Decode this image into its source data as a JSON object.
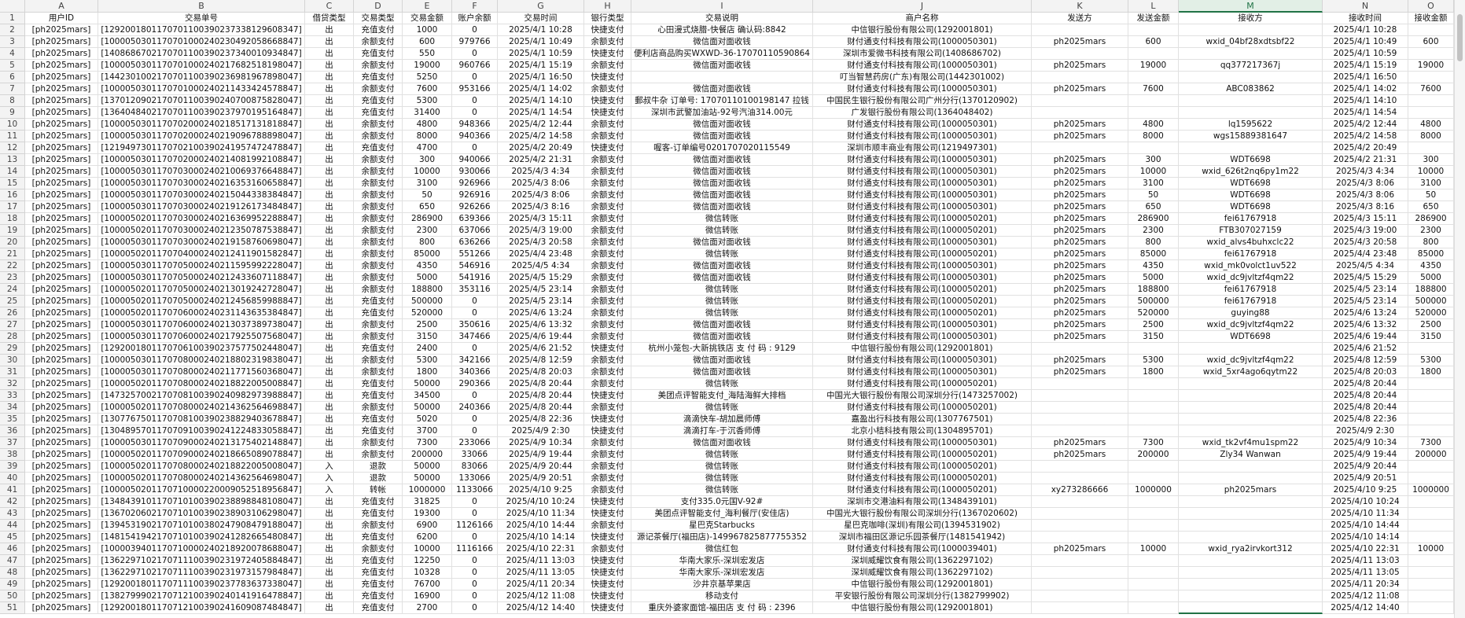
{
  "columns": [
    "A",
    "B",
    "C",
    "D",
    "E",
    "F",
    "G",
    "H",
    "I",
    "J",
    "K",
    "L",
    "M",
    "N",
    "O"
  ],
  "row_numbers": [
    1,
    2,
    3,
    4,
    5,
    6,
    7,
    8,
    9,
    10,
    11,
    12,
    13,
    14,
    15,
    16,
    17,
    18,
    19,
    20,
    21,
    22,
    23,
    24,
    25,
    26,
    27,
    28,
    29,
    30,
    31,
    32,
    33,
    34,
    35,
    36,
    37,
    38,
    39,
    40,
    41,
    42,
    43,
    44,
    45,
    46,
    47,
    48,
    49,
    50,
    51
  ],
  "table": {
    "header": [
      "用户ID",
      "交易单号",
      "借贷类型",
      "交易类型",
      "交易金额",
      "账户余额",
      "交易时间",
      "银行类型",
      "交易说明",
      "商户名称",
      "发送方",
      "发送金额",
      "接收方",
      "接收时间",
      "接收金额"
    ],
    "rows": [
      [
        "[ph2025mars]",
        "[1292001801170701100390237338129608347]",
        "出",
        "充值支付",
        1000,
        0,
        "2025/4/1 10:28",
        "快捷支付",
        "心田漫式烧腊-快餐店 确认码:8842",
        "中信银行股份有限公司(1292001801)",
        null,
        null,
        null,
        "2025/4/1 10:28",
        null
      ],
      [
        "[ph2025mars]",
        "[1000050301170701000240230492058668847]",
        "出",
        "余额支付",
        600,
        979766,
        "2025/4/1 10:49",
        "余额支付",
        "微信面对面收钱",
        "财付通支付科技有限公司(1000050301)",
        "ph2025mars",
        600,
        "wxid_04bf28xdtsbf22",
        "2025/4/1 10:49",
        600
      ],
      [
        "[ph2025mars]",
        "[1408686702170701100390237340010934847]",
        "出",
        "充值支付",
        550,
        0,
        "2025/4/1 10:59",
        "快捷支付",
        "便利店商品购买WXWD-36-17070110590864",
        "深圳市爱微书科技有限公司(1408686702)",
        null,
        null,
        null,
        "2025/4/1 10:59",
        null
      ],
      [
        "[ph2025mars]",
        "[1000050301170701000240217682518198047]",
        "出",
        "余额支付",
        19000,
        960766,
        "2025/4/1 15:19",
        "余额支付",
        "微信面对面收钱",
        "财付通支付科技有限公司(1000050301)",
        "ph2025mars",
        19000,
        "qq377217367j",
        "2025/4/1 15:19",
        19000
      ],
      [
        "[ph2025mars]",
        "[1442301002170701100390236981967898047]",
        "出",
        "充值支付",
        5250,
        0,
        "2025/4/1 16:50",
        "快捷支付",
        null,
        "叮当智慧药房(广东)有限公司(1442301002)",
        null,
        null,
        null,
        "2025/4/1 16:50",
        null
      ],
      [
        "[ph2025mars]",
        "[1000050301170701000240211433424578847]",
        "出",
        "余额支付",
        7600,
        953166,
        "2025/4/1 14:02",
        "余额支付",
        "微信面对面收钱",
        "财付通支付科技有限公司(1000050301)",
        "ph2025mars",
        7600,
        "ABC083862",
        "2025/4/1 14:02",
        7600
      ],
      [
        "[ph2025mars]",
        "[1370120902170701100390240700875828047]",
        "出",
        "充值支付",
        5300,
        0,
        "2025/4/1 14:10",
        "快捷支付",
        "郵叔牛杂 订单号: 17070110100198147 拉钱",
        "中国民生银行股份有限公司广州分行(1370120902)",
        null,
        null,
        null,
        "2025/4/1 14:10",
        null
      ],
      [
        "[ph2025mars]",
        "[1364048402170701100390237970195164847]",
        "出",
        "充值支付",
        31400,
        0,
        "2025/4/1 14:54",
        "快捷支付",
        "深圳市武警加油站-92号汽油314.00元",
        "广发银行股份有限公司(1364048402)",
        null,
        null,
        null,
        "2025/4/1 14:54",
        null
      ],
      [
        "[ph2025mars]",
        "[1000050301170702000240218517131818847]",
        "出",
        "余额支付",
        4800,
        948366,
        "2025/4/2 12:44",
        "余额支付",
        "微信面对面收钱",
        "财付通支付科技有限公司(1000050301)",
        "ph2025mars",
        4800,
        "lq1595622",
        "2025/4/2 12:44",
        4800
      ],
      [
        "[ph2025mars]",
        "[1000050301170702000240219096788898047]",
        "出",
        "余额支付",
        8000,
        940366,
        "2025/4/2 14:58",
        "余额支付",
        "微信面对面收钱",
        "财付通支付科技有限公司(1000050301)",
        "ph2025mars",
        8000,
        "wgs15889381647",
        "2025/4/2 14:58",
        8000
      ],
      [
        "[ph2025mars]",
        "[1219497301170702100390241957472478847]",
        "出",
        "充值支付",
        4700,
        0,
        "2025/4/2 20:49",
        "快捷支付",
        "喔客-订单编号0201707020115549",
        "深圳市顺丰商业有限公司(1219497301)",
        null,
        null,
        null,
        "2025/4/2 20:49",
        null
      ],
      [
        "[ph2025mars]",
        "[1000050301170702000240214081992108847]",
        "出",
        "余额支付",
        300,
        940066,
        "2025/4/2 21:31",
        "余额支付",
        "微信面对面收钱",
        "财付通支付科技有限公司(1000050301)",
        "ph2025mars",
        300,
        "WDT6698",
        "2025/4/2 21:31",
        300
      ],
      [
        "[ph2025mars]",
        "[1000050301170703000240210069376648847]",
        "出",
        "余额支付",
        10000,
        930066,
        "2025/4/3 4:34",
        "余额支付",
        "微信面对面收钱",
        "财付通支付科技有限公司(1000050301)",
        "ph2025mars",
        10000,
        "wxid_626t2nq6py1m22",
        "2025/4/3 4:34",
        10000
      ],
      [
        "[ph2025mars]",
        "[1000050301170703000240216353160658847]",
        "出",
        "余额支付",
        3100,
        926966,
        "2025/4/3 8:06",
        "余额支付",
        "微信面对面收钱",
        "财付通支付科技有限公司(1000050301)",
        "ph2025mars",
        3100,
        "WDT6698",
        "2025/4/3 8:06",
        3100
      ],
      [
        "[ph2025mars]",
        "[1000050301170703000240215044338384847]",
        "出",
        "余额支付",
        50,
        926916,
        "2025/4/3 8:06",
        "余额支付",
        "微信面对面收钱",
        "财付通支付科技有限公司(1000050301)",
        "ph2025mars",
        50,
        "WDT6698",
        "2025/4/3 8:06",
        50
      ],
      [
        "[ph2025mars]",
        "[1000050301170703000240219126173484847]",
        "出",
        "余额支付",
        650,
        926266,
        "2025/4/3 8:16",
        "余额支付",
        "微信面对面收钱",
        "财付通支付科技有限公司(1000050301)",
        "ph2025mars",
        650,
        "WDT6698",
        "2025/4/3 8:16",
        650
      ],
      [
        "[ph2025mars]",
        "[1000050201170703000240216369952288847]",
        "出",
        "余额支付",
        286900,
        639366,
        "2025/4/3 15:11",
        "余额支付",
        "微信转账",
        "财付通支付科技有限公司(1000050201)",
        "ph2025mars",
        286900,
        "fei61767918",
        "2025/4/3 15:11",
        286900
      ],
      [
        "[ph2025mars]",
        "[1000050201170703000240212350787538847]",
        "出",
        "余额支付",
        2300,
        637066,
        "2025/4/3 19:00",
        "余额支付",
        "微信转账",
        "财付通支付科技有限公司(1000050201)",
        "ph2025mars",
        2300,
        "FTB307027159",
        "2025/4/3 19:00",
        2300
      ],
      [
        "[ph2025mars]",
        "[1000050301170703000240219158760698047]",
        "出",
        "余额支付",
        800,
        636266,
        "2025/4/3 20:58",
        "余额支付",
        "微信面对面收钱",
        "财付通支付科技有限公司(1000050301)",
        "ph2025mars",
        800,
        "wxid_alvs4buhxclc22",
        "2025/4/3 20:58",
        800
      ],
      [
        "[ph2025mars]",
        "[1000050201170704000240212411901582847]",
        "出",
        "余额支付",
        85000,
        551266,
        "2025/4/4 23:48",
        "余额支付",
        "微信转账",
        "财付通支付科技有限公司(1000050201)",
        "ph2025mars",
        85000,
        "fei61767918",
        "2025/4/4 23:48",
        85000
      ],
      [
        "[ph2025mars]",
        "[1000050301170705000240211595992228047]",
        "出",
        "余额支付",
        4350,
        546916,
        "2025/4/5 4:34",
        "余额支付",
        "微信面对面收钱",
        "财付通支付科技有限公司(1000050301)",
        "ph2025mars",
        4350,
        "wxid_mk0volct1uv522",
        "2025/4/5 4:34",
        4350
      ],
      [
        "[ph2025mars]",
        "[1000050301170705000240212433607118847]",
        "出",
        "余额支付",
        5000,
        541916,
        "2025/4/5 15:29",
        "余额支付",
        "微信面对面收钱",
        "财付通支付科技有限公司(1000050301)",
        "ph2025mars",
        5000,
        "wxid_dc9jvltzf4qm22",
        "2025/4/5 15:29",
        5000
      ],
      [
        "[ph2025mars]",
        "[1000050201170705000240213019242728047]",
        "出",
        "余额支付",
        188800,
        353116,
        "2025/4/5 23:14",
        "余额支付",
        "微信转账",
        "财付通支付科技有限公司(1000050201)",
        "ph2025mars",
        188800,
        "fei61767918",
        "2025/4/5 23:14",
        188800
      ],
      [
        "[ph2025mars]",
        "[1000050201170705000240212456859988847]",
        "出",
        "充值支付",
        500000,
        0,
        "2025/4/5 23:14",
        "余额支付",
        "微信转账",
        "财付通支付科技有限公司(1000050201)",
        "ph2025mars",
        500000,
        "fei61767918",
        "2025/4/5 23:14",
        500000
      ],
      [
        "[ph2025mars]",
        "[1000050201170706000240231143635384847]",
        "出",
        "充值支付",
        520000,
        0,
        "2025/4/6 13:24",
        "余额支付",
        "微信转账",
        "财付通支付科技有限公司(1000050201)",
        "ph2025mars",
        520000,
        "guying88",
        "2025/4/6 13:24",
        520000
      ],
      [
        "[ph2025mars]",
        "[1000050301170706000240213037389738047]",
        "出",
        "余额支付",
        2500,
        350616,
        "2025/4/6 13:32",
        "余额支付",
        "微信面对面收钱",
        "财付通支付科技有限公司(1000050301)",
        "ph2025mars",
        2500,
        "wxid_dc9jvltzf4qm22",
        "2025/4/6 13:32",
        2500
      ],
      [
        "[ph2025mars]",
        "[1000050301170706000240217925507568047]",
        "出",
        "余额支付",
        3150,
        347466,
        "2025/4/6 19:44",
        "余额支付",
        "微信面对面收钱",
        "财付通支付科技有限公司(1000050301)",
        "ph2025mars",
        3150,
        "WDT6698",
        "2025/4/6 19:44",
        3150
      ],
      [
        "[ph2025mars]",
        "[1292001801170706100390237577502448047]",
        "出",
        "充值支付",
        2400,
        0,
        "2025/4/6 21:52",
        "快捷支付",
        "杭州小笼包-大新挑铁店 支 付 码 : 9129",
        "中信银行股份有限公司(1292001801)",
        null,
        null,
        null,
        "2025/4/6 21:52",
        null
      ],
      [
        "[ph2025mars]",
        "[1000050301170708000240218802319838047]",
        "出",
        "余额支付",
        5300,
        342166,
        "2025/4/8 12:59",
        "余额支付",
        "微信面对面收钱",
        "财付通支付科技有限公司(1000050301)",
        "ph2025mars",
        5300,
        "wxid_dc9jvltzf4qm22",
        "2025/4/8 12:59",
        5300
      ],
      [
        "[ph2025mars]",
        "[1000050301170708000240211771560368047]",
        "出",
        "余额支付",
        1800,
        340366,
        "2025/4/8 20:03",
        "余额支付",
        "微信面对面收钱",
        "财付通支付科技有限公司(1000050301)",
        "ph2025mars",
        1800,
        "wxid_5xr4ago6qytm22",
        "2025/4/8 20:03",
        1800
      ],
      [
        "[ph2025mars]",
        "[1000050201170708000240218822005008847]",
        "出",
        "充值支付",
        50000,
        290366,
        "2025/4/8 20:44",
        "余额支付",
        "微信转账",
        "财付通支付科技有限公司(1000050201)",
        null,
        null,
        null,
        "2025/4/8 20:44",
        null
      ],
      [
        "[ph2025mars]",
        "[1473257002170708100390240982973988847]",
        "出",
        "充值支付",
        34500,
        0,
        "2025/4/8 20:44",
        "快捷支付",
        "美团点评智能支付_海陆海鲜大排档",
        "中国光大银行股份有限公司深圳分行(1473257002)",
        null,
        null,
        null,
        "2025/4/8 20:44",
        null
      ],
      [
        "[ph2025mars]",
        "[1000050201170708000240214362564698847]",
        "出",
        "余额支付",
        50000,
        240366,
        "2025/4/8 20:44",
        "余额支付",
        "微信转账",
        "财付通支付科技有限公司(1000050201)",
        null,
        null,
        null,
        "2025/4/8 20:44",
        null
      ],
      [
        "[ph2025mars]",
        "[1307767501170708100390238829403678847]",
        "出",
        "充值支付",
        5020,
        0,
        "2025/4/8 22:36",
        "快捷支付",
        "滴滴快车-胡加晨师傅",
        "嘉盈出行科技有限公司(1307767501)",
        null,
        null,
        null,
        "2025/4/8 22:36",
        null
      ],
      [
        "[ph2025mars]",
        "[1304895701170709100390241224833058847]",
        "出",
        "充值支付",
        3700,
        0,
        "2025/4/9 2:30",
        "快捷支付",
        "滴滴打车-于沉香师傅",
        "北京小桔科技有限公司(1304895701)",
        null,
        null,
        null,
        "2025/4/9 2:30",
        null
      ],
      [
        "[ph2025mars]",
        "[1000050301170709000240213175402148847]",
        "出",
        "余额支付",
        7300,
        233066,
        "2025/4/9 10:34",
        "余额支付",
        "微信面对面收钱",
        "财付通支付科技有限公司(1000050301)",
        "ph2025mars",
        7300,
        "wxid_tk2vf4mu1spm22",
        "2025/4/9 10:34",
        7300
      ],
      [
        "[ph2025mars]",
        "[1000050201170709000240218665089078847]",
        "出",
        "余额支付",
        200000,
        33066,
        "2025/4/9 19:44",
        "余额支付",
        "微信转账",
        "财付通支付科技有限公司(1000050201)",
        "ph2025mars",
        200000,
        "Zly34 Wanwan",
        "2025/4/9 19:44",
        200000
      ],
      [
        "[ph2025mars]",
        "[1000050201170708000240218822005008047]",
        "入",
        "退款",
        50000,
        83066,
        "2025/4/9 20:44",
        "余额支付",
        "微信转账",
        "财付通支付科技有限公司(1000050201)",
        null,
        null,
        null,
        "2025/4/9 20:44",
        null
      ],
      [
        "[ph2025mars]",
        "[1000050201170708000240214362564698047]",
        "入",
        "退款",
        50000,
        133066,
        "2025/4/9 20:51",
        "余额支付",
        "微信转账",
        "财付通支付科技有限公司(1000050201)",
        null,
        null,
        null,
        "2025/4/9 20:51",
        null
      ],
      [
        "[ph2025mars]",
        "[1000050201170710000220009052518956847]",
        "入",
        "转帐",
        1000000,
        1133066,
        "2025/4/10 9:25",
        "余额支付",
        "微信转账",
        "财付通支付科技有限公司(1000050201)",
        "xy273286666",
        1000000,
        "ph2025mars",
        "2025/4/10 9:25",
        1000000
      ],
      [
        "[ph2025mars]",
        "[1348439101170710100390238898848108047]",
        "出",
        "充值支付",
        31825,
        0,
        "2025/4/10 10:24",
        "快捷支付",
        "支付335.0元国V-92#",
        "深圳市交港油料有限公司(1348439101)",
        null,
        null,
        null,
        "2025/4/10 10:24",
        null
      ],
      [
        "[ph2025mars]",
        "[1367020602170710100390238903106298047]",
        "出",
        "充值支付",
        19300,
        0,
        "2025/4/10 11:34",
        "快捷支付",
        "美团点评智能支付_海利餐厅(安佳店)",
        "中国光大银行股份有限公司深圳分行(1367020602)",
        null,
        null,
        null,
        "2025/4/10 11:34",
        null
      ],
      [
        "[ph2025mars]",
        "[1394531902170710100380247908479188047]",
        "出",
        "余额支付",
        6900,
        1126166,
        "2025/4/10 14:44",
        "余额支付",
        "星巴克Starbucks",
        "星巴克咖啡(深圳)有限公司(1394531902)",
        null,
        null,
        null,
        "2025/4/10 14:44",
        null
      ],
      [
        "[ph2025mars]",
        "[1481541942170710100390241282665480847]",
        "出",
        "充值支付",
        6200,
        0,
        "2025/4/10 14:14",
        "快捷支付",
        "源记茶餐厅(福田店)-149967825877755352",
        "深圳市福田区源记乐园茶餐厅(1481541942)",
        null,
        null,
        null,
        "2025/4/10 14:14",
        null
      ],
      [
        "[ph2025mars]",
        "[1000039401170710000240218920078688047]",
        "出",
        "余额支付",
        10000,
        1116166,
        "2025/4/10 22:31",
        "余额支付",
        "微信红包",
        "财付通支付科技有限公司(1000039401)",
        "ph2025mars",
        10000,
        "wxid_rya2irvkort312",
        "2025/4/10 22:31",
        10000
      ],
      [
        "[ph2025mars]",
        "[1362297102170711100390231972405884847]",
        "出",
        "充值支付",
        12250,
        0,
        "2025/4/11 13:03",
        "快捷支付",
        "华南大家乐-深圳宏发店",
        "深圳威耀饮食有限公司(1362297102)",
        null,
        null,
        null,
        "2025/4/11 13:03",
        null
      ],
      [
        "[ph2025mars]",
        "[1362297102170711100390231973157984847]",
        "出",
        "充值支付",
        10328,
        0,
        "2025/4/11 13:05",
        "快捷支付",
        "华南大家乐-深圳宏发店",
        "深圳威耀饮食有限公司(1362297102)",
        null,
        null,
        null,
        "2025/4/11 13:05",
        null
      ],
      [
        "[ph2025mars]",
        "[1292001801170711100390237783637338047]",
        "出",
        "充值支付",
        76700,
        0,
        "2025/4/11 20:34",
        "快捷支付",
        "沙井京基苹果店",
        "中信银行股份有限公司(1292001801)",
        null,
        null,
        null,
        "2025/4/11 20:34",
        null
      ],
      [
        "[ph2025mars]",
        "[1382799902170712100390240141916478847]",
        "出",
        "充值支付",
        16900,
        0,
        "2025/4/12 11:08",
        "快捷支付",
        "移动支付",
        "平安银行股份有限公司深圳分行(1382799902)",
        null,
        null,
        null,
        "2025/4/12 11:08",
        null
      ],
      [
        "[ph2025mars]",
        "[1292001801170712100390241609087484847]",
        "出",
        "充值支付",
        2700,
        0,
        "2025/4/12 14:40",
        "快捷支付",
        "重庆外婆家面馆-福田店 支 付 码 : 2396",
        "中信银行股份有限公司(1292001801)",
        null,
        null,
        null,
        "2025/4/12 14:40",
        null
      ]
    ]
  }
}
